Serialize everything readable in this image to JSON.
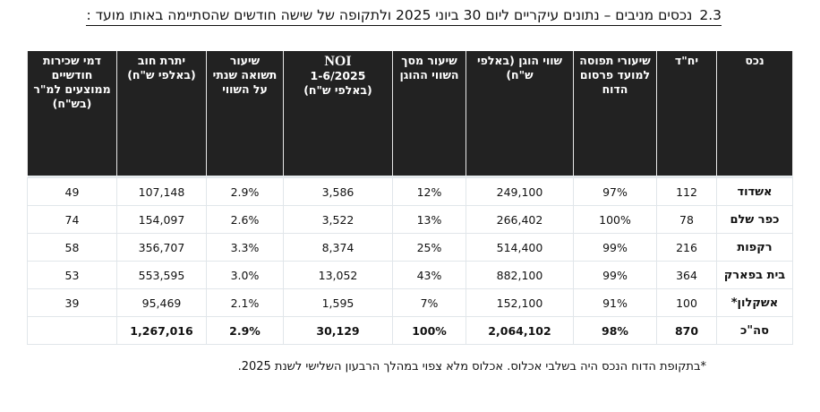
{
  "title": {
    "section_number": "2.3",
    "text": "נכסים מניבים – נתונים עיקריים ליום 30 ביוני 2025 ולתקופה של שישה חודשים שהסתיימה באותו מועד :"
  },
  "table": {
    "headers": {
      "property": "נכס",
      "units": "יח\"ד",
      "occupancy": "שיעורי תפוסה למועד פרסום הדוח",
      "fair_value": "שווי הוגן (באלפי ש\"ח)",
      "share_of_fair_value": "שיעור מסך השווי ההוגן",
      "noi_label": "NOI",
      "noi_period": "1-6/2025",
      "noi_unit": "(באלפי ש\"ח)",
      "yield": "שיעור תשואה שנתי על השווי",
      "debt": "יתרת חוב (באלפי ש\"ח)",
      "avg_rent": "דמי שכירות חודשיים ממוצעים למ\"ר (בש\"ח)"
    },
    "rows": [
      {
        "property": "אשדוד",
        "units": "112",
        "occupancy": "97%",
        "fair_value": "249,100",
        "share_of_fair_value": "12%",
        "noi": "3,586",
        "yield": "2.9%",
        "debt": "107,148",
        "avg_rent": "49"
      },
      {
        "property": "כפר שלם",
        "units": "78",
        "occupancy": "100%",
        "fair_value": "266,402",
        "share_of_fair_value": "13%",
        "noi": "3,522",
        "yield": "2.6%",
        "debt": "154,097",
        "avg_rent": "74"
      },
      {
        "property": "רקפות",
        "units": "216",
        "occupancy": "99%",
        "fair_value": "514,400",
        "share_of_fair_value": "25%",
        "noi": "8,374",
        "yield": "3.3%",
        "debt": "356,707",
        "avg_rent": "58"
      },
      {
        "property": "בית בפארק",
        "units": "364",
        "occupancy": "99%",
        "fair_value": "882,100",
        "share_of_fair_value": "43%",
        "noi": "13,052",
        "yield": "3.0%",
        "debt": "553,595",
        "avg_rent": "53"
      },
      {
        "property": "אשקלון*",
        "units": "100",
        "occupancy": "91%",
        "fair_value": "152,100",
        "share_of_fair_value": "7%",
        "noi": "1,595",
        "yield": "2.1%",
        "debt": "95,469",
        "avg_rent": "39"
      }
    ],
    "total": {
      "property": "סה\"כ",
      "units": "870",
      "occupancy": "98%",
      "fair_value": "2,064,102",
      "share_of_fair_value": "100%",
      "noi": "30,129",
      "yield": "2.9%",
      "debt": "1,267,016",
      "avg_rent": ""
    }
  },
  "footnote": "*בתקופת הדוח הנכס היה בשלבי אכלוס. אכלוס מלא צפוי במהלך הרבעון השלישי לשנת 2025."
}
